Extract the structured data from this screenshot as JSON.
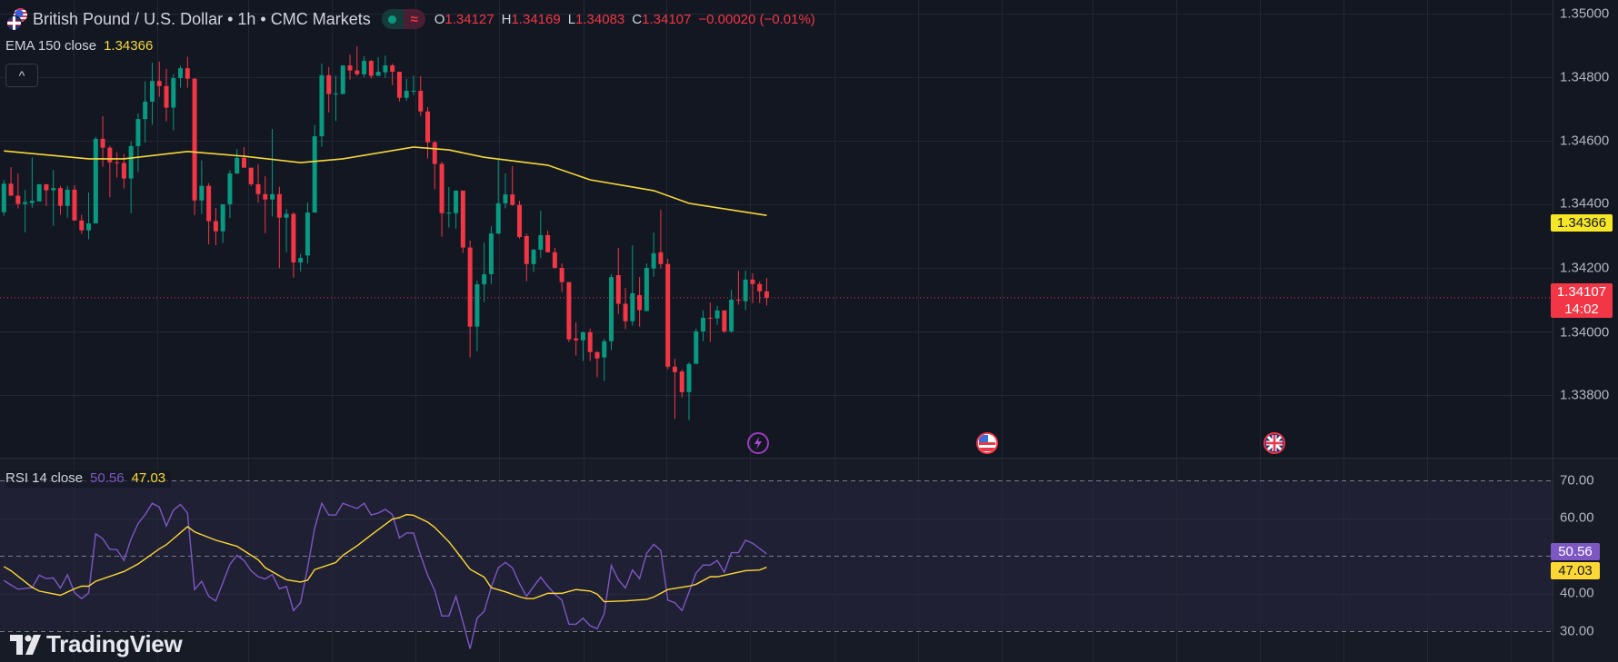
{
  "header": {
    "title": "British Pound / U.S. Dollar • 1h • CMC Markets",
    "ohlc": {
      "o_label": "O",
      "o_value": "1.34127",
      "h_label": "H",
      "h_value": "1.34169",
      "l_label": "L",
      "l_value": "1.34083",
      "c_label": "C",
      "c_value": "1.34107",
      "change": "−0.00020 (−0.01%)"
    },
    "pill_icon": "≈"
  },
  "ema_legend": {
    "name": "EMA 150 close",
    "value": "1.34366"
  },
  "rsi_legend": {
    "name": "RSI 14 close",
    "value": "50.56",
    "ma_value": "47.03"
  },
  "collapse_icon": "^",
  "price_axis": {
    "ticks": [
      "1.35000",
      "1.34800",
      "1.34600",
      "1.34400",
      "1.34200",
      "1.34000",
      "1.33800"
    ],
    "ema_tag": "1.34366",
    "last_price_tag": "1.34107",
    "countdown": "14:02"
  },
  "rsi_axis": {
    "ticks": [
      "70.00",
      "60.00",
      "40.00",
      "30.00"
    ],
    "rsi_tag": "50.56",
    "ma_tag": "47.03"
  },
  "markers": [
    {
      "icon": "lightning-icon"
    },
    {
      "icon": "us-flag-icon"
    },
    {
      "icon": "uk-flag-icon"
    }
  ],
  "logo_text": "TradingView",
  "colors": {
    "up": "#089981",
    "down": "#f23645",
    "ema": "#f5d83b",
    "rsi": "#7e57c2",
    "rsi_ma": "#fdd835",
    "background": "#131722",
    "grid": "#232733"
  },
  "chart_data": [
    {
      "type": "candlestick",
      "title": "British Pound / U.S. Dollar • 1h • CMC Markets",
      "ylim": [
        1.3365,
        1.3505
      ],
      "yticks": [
        1.35,
        1.348,
        1.346,
        1.344,
        1.342,
        1.34,
        1.338
      ],
      "grid": true,
      "ohlc_fields": [
        "open",
        "high",
        "low",
        "close"
      ],
      "candles": [
        [
          1.34376,
          1.34477,
          1.34365,
          1.34466
        ],
        [
          1.34466,
          1.34518,
          1.34428,
          1.34428
        ],
        [
          1.34428,
          1.34498,
          1.34388,
          1.34402
        ],
        [
          1.34402,
          1.34446,
          1.34313,
          1.34408
        ],
        [
          1.34405,
          1.34548,
          1.3439,
          1.34412
        ],
        [
          1.3441,
          1.34464,
          1.3441,
          1.34464
        ],
        [
          1.34464,
          1.34464,
          1.34396,
          1.34445
        ],
        [
          1.34445,
          1.34509,
          1.34333,
          1.34452
        ],
        [
          1.34452,
          1.34459,
          1.34368,
          1.34396
        ],
        [
          1.34396,
          1.34459,
          1.34359,
          1.34447
        ],
        [
          1.34447,
          1.34461,
          1.3435,
          1.3435
        ],
        [
          1.3435,
          1.34368,
          1.34308,
          1.34319
        ],
        [
          1.34319,
          1.34438,
          1.34291,
          1.34341
        ],
        [
          1.34341,
          1.34613,
          1.34341,
          1.34607
        ],
        [
          1.34607,
          1.34678,
          1.34519,
          1.34579
        ],
        [
          1.34579,
          1.34585,
          1.34423,
          1.34533
        ],
        [
          1.34533,
          1.34565,
          1.34485,
          1.34531
        ],
        [
          1.34531,
          1.34559,
          1.34451,
          1.34482
        ],
        [
          1.34482,
          1.34598,
          1.34373,
          1.34584
        ],
        [
          1.34584,
          1.34687,
          1.34503,
          1.34669
        ],
        [
          1.34669,
          1.34788,
          1.34595,
          1.34724
        ],
        [
          1.34724,
          1.34847,
          1.34651,
          1.34789
        ],
        [
          1.34789,
          1.3485,
          1.34739,
          1.34773
        ],
        [
          1.34773,
          1.34827,
          1.34662,
          1.34705
        ],
        [
          1.34705,
          1.3481,
          1.34634,
          1.34798
        ],
        [
          1.34798,
          1.34837,
          1.34768,
          1.34829
        ],
        [
          1.34829,
          1.34865,
          1.34768,
          1.34796
        ],
        [
          1.34796,
          1.34798,
          1.34367,
          1.34413
        ],
        [
          1.34413,
          1.34539,
          1.34371,
          1.34459
        ],
        [
          1.34459,
          1.34468,
          1.34275,
          1.34348
        ],
        [
          1.34348,
          1.34389,
          1.34272,
          1.34316
        ],
        [
          1.34316,
          1.34401,
          1.34279,
          1.34401
        ],
        [
          1.34401,
          1.34508,
          1.34358,
          1.34498
        ],
        [
          1.34498,
          1.34575,
          1.34496,
          1.34547
        ],
        [
          1.34547,
          1.34581,
          1.34516,
          1.34516
        ],
        [
          1.34516,
          1.34516,
          1.34458,
          1.34464
        ],
        [
          1.34464,
          1.34527,
          1.34406,
          1.34433
        ],
        [
          1.34433,
          1.34489,
          1.3431,
          1.34416
        ],
        [
          1.34416,
          1.34638,
          1.34362,
          1.34433
        ],
        [
          1.34433,
          1.34456,
          1.342,
          1.34359
        ],
        [
          1.34359,
          1.34386,
          1.3425,
          1.34371
        ],
        [
          1.34371,
          1.34376,
          1.3417,
          1.34218
        ],
        [
          1.34218,
          1.34245,
          1.3419,
          1.34232
        ],
        [
          1.3424,
          1.34407,
          1.34215,
          1.34375
        ],
        [
          1.34375,
          1.34651,
          1.34375,
          1.34615
        ],
        [
          1.34615,
          1.34844,
          1.34582,
          1.34807
        ],
        [
          1.34807,
          1.34833,
          1.3469,
          1.34748
        ],
        [
          1.34748,
          1.34806,
          1.34663,
          1.3475
        ],
        [
          1.34748,
          1.34838,
          1.34748,
          1.34838
        ],
        [
          1.34838,
          1.34872,
          1.34793,
          1.34822
        ],
        [
          1.34822,
          1.34898,
          1.34805,
          1.3481
        ],
        [
          1.3481,
          1.34867,
          1.34801,
          1.34852
        ],
        [
          1.34852,
          1.34855,
          1.34796,
          1.34805
        ],
        [
          1.34805,
          1.34864,
          1.34805,
          1.34818
        ],
        [
          1.34816,
          1.34869,
          1.34799,
          1.34838
        ],
        [
          1.34838,
          1.34844,
          1.34776,
          1.34818
        ],
        [
          1.34818,
          1.34818,
          1.34725,
          1.34736
        ],
        [
          1.34736,
          1.34795,
          1.34727,
          1.34758
        ],
        [
          1.34757,
          1.34806,
          1.34745,
          1.34758
        ],
        [
          1.34758,
          1.34804,
          1.34679,
          1.34693
        ],
        [
          1.34693,
          1.34707,
          1.34545,
          1.34596
        ],
        [
          1.34596,
          1.346,
          1.34448,
          1.34528
        ],
        [
          1.34528,
          1.34535,
          1.34299,
          1.34373
        ],
        [
          1.34373,
          1.34455,
          1.34328,
          1.34375
        ],
        [
          1.34373,
          1.34444,
          1.34325,
          1.34444
        ],
        [
          1.34444,
          1.34444,
          1.34248,
          1.34265
        ],
        [
          1.34265,
          1.34287,
          1.33919,
          1.34016
        ],
        [
          1.34016,
          1.34161,
          1.33939,
          1.34149
        ],
        [
          1.34149,
          1.34281,
          1.34093,
          1.34181
        ],
        [
          1.34181,
          1.34332,
          1.3415,
          1.34309
        ],
        [
          1.34309,
          1.34541,
          1.34307,
          1.34404
        ],
        [
          1.34404,
          1.34498,
          1.34388,
          1.34432
        ],
        [
          1.34432,
          1.34521,
          1.34396,
          1.34399
        ],
        [
          1.34399,
          1.34412,
          1.34293,
          1.34298
        ],
        [
          1.34301,
          1.34309,
          1.34159,
          1.34213
        ],
        [
          1.34213,
          1.34261,
          1.34188,
          1.34258
        ],
        [
          1.34258,
          1.34381,
          1.34233,
          1.34304
        ],
        [
          1.34304,
          1.34318,
          1.3425,
          1.3425
        ],
        [
          1.3425,
          1.34264,
          1.34198,
          1.34201
        ],
        [
          1.34201,
          1.34215,
          1.34125,
          1.34156
        ],
        [
          1.34156,
          1.34156,
          1.33968,
          1.33976
        ],
        [
          1.33979,
          1.3403,
          1.33925,
          1.33973
        ],
        [
          1.33973,
          1.34001,
          1.33908,
          1.33998
        ],
        [
          1.33998,
          1.3401,
          1.33908,
          1.33936
        ],
        [
          1.33936,
          1.33938,
          1.33856,
          1.33916
        ],
        [
          1.33919,
          1.33978,
          1.33845,
          1.3397
        ],
        [
          1.3397,
          1.34181,
          1.33942,
          1.34172
        ],
        [
          1.34178,
          1.34264,
          1.34056,
          1.34088
        ],
        [
          1.34088,
          1.34138,
          1.34008,
          1.34033
        ],
        [
          1.34033,
          1.34272,
          1.34019,
          1.34121
        ],
        [
          1.34115,
          1.34172,
          1.34016,
          1.34068
        ],
        [
          1.34065,
          1.34215,
          1.34065,
          1.34201
        ],
        [
          1.34199,
          1.34312,
          1.34173,
          1.34247
        ],
        [
          1.3425,
          1.34384,
          1.34199,
          1.34213
        ],
        [
          1.34213,
          1.3423,
          1.33882,
          1.3389
        ],
        [
          1.3389,
          1.33915,
          1.33726,
          1.33873
        ],
        [
          1.33875,
          1.33881,
          1.33793,
          1.3381
        ],
        [
          1.3381,
          1.33904,
          1.33722,
          1.33898
        ],
        [
          1.33899,
          1.3401,
          1.33899,
          1.34001
        ],
        [
          1.34001,
          1.34067,
          1.3397,
          1.34044
        ],
        [
          1.34044,
          1.34092,
          1.33968,
          1.34042
        ],
        [
          1.34042,
          1.34081,
          1.34022,
          1.34067
        ],
        [
          1.34067,
          1.34067,
          1.33996,
          1.34001
        ],
        [
          1.34001,
          1.34132,
          1.33996,
          1.34101
        ],
        [
          1.34101,
          1.34192,
          1.34085,
          1.34099
        ],
        [
          1.34096,
          1.34192,
          1.34068,
          1.34164
        ],
        [
          1.34164,
          1.34184,
          1.3409,
          1.3415
        ],
        [
          1.3415,
          1.34158,
          1.3409,
          1.34127
        ],
        [
          1.34127,
          1.34169,
          1.34083,
          1.34107
        ]
      ],
      "last_price": 1.34107,
      "ema_150": {
        "name": "EMA 150 close",
        "points": [
          [
            0,
            1.34569
          ],
          [
            12,
            1.34544
          ],
          [
            17,
            1.34544
          ],
          [
            26,
            1.34567
          ],
          [
            34,
            1.34552
          ],
          [
            42,
            1.34532
          ],
          [
            48,
            1.34544
          ],
          [
            58,
            1.34581
          ],
          [
            63,
            1.34572
          ],
          [
            68,
            1.34549
          ],
          [
            77,
            1.34524
          ],
          [
            83,
            1.34478
          ],
          [
            92,
            1.34444
          ],
          [
            97,
            1.34404
          ],
          [
            108,
            1.34366
          ]
        ]
      }
    },
    {
      "type": "line",
      "title": "RSI 14 close",
      "ylim": [
        25,
        75
      ],
      "yticks": [
        70,
        60,
        40,
        30
      ],
      "bands": {
        "upper": 70,
        "middle": 50,
        "lower": 30
      },
      "series": [
        {
          "name": "RSI",
          "values": [
            43.5,
            42.3,
            41.2,
            41.4,
            41.6,
            44.9,
            44.0,
            44.2,
            41.5,
            45.0,
            40.3,
            38.7,
            40.2,
            55.9,
            54.6,
            51.8,
            51.7,
            48.8,
            54.5,
            58.6,
            61.0,
            64.0,
            63.0,
            58.0,
            62.2,
            63.7,
            61.4,
            41.1,
            43.3,
            39.3,
            38.1,
            42.9,
            47.8,
            50.2,
            48.8,
            46.1,
            44.5,
            43.9,
            45.1,
            41.3,
            41.9,
            35.5,
            37.6,
            46.9,
            57.4,
            64.0,
            60.9,
            60.9,
            64.0,
            63.3,
            62.6,
            64.0,
            60.9,
            61.4,
            62.4,
            61.0,
            54.8,
            56.1,
            56.1,
            50.2,
            44.9,
            40.9,
            34.1,
            34.1,
            39.3,
            32.5,
            25.4,
            33.5,
            35.3,
            41.7,
            46.9,
            48.3,
            46.9,
            42.7,
            39.3,
            41.9,
            44.4,
            42.0,
            39.9,
            38.3,
            31.9,
            31.9,
            33.5,
            31.5,
            30.7,
            34.7,
            47.5,
            43.7,
            41.5,
            46.3,
            44.0,
            50.7,
            53.1,
            51.5,
            38.3,
            37.6,
            35.5,
            40.4,
            45.5,
            47.6,
            47.6,
            48.8,
            45.7,
            50.9,
            50.9,
            54.2,
            53.4,
            52.0,
            50.56
          ]
        },
        {
          "name": "RSI MA",
          "points": [
            [
              0,
              47.2
            ],
            [
              1,
              46.1
            ],
            [
              4,
              41.7
            ],
            [
              5,
              40.7
            ],
            [
              8,
              39.6
            ],
            [
              10,
              41.3
            ],
            [
              11,
              42.0
            ],
            [
              12,
              42.0
            ],
            [
              13,
              43.3
            ],
            [
              17,
              45.9
            ],
            [
              19,
              47.9
            ],
            [
              22,
              51.9
            ],
            [
              23,
              53.0
            ],
            [
              26,
              57.8
            ],
            [
              27,
              56.4
            ],
            [
              30,
              54.2
            ],
            [
              33,
              52.6
            ],
            [
              34,
              51.4
            ],
            [
              36,
              49.0
            ],
            [
              37,
              46.9
            ],
            [
              40,
              43.7
            ],
            [
              42,
              43.1
            ],
            [
              43,
              43.6
            ],
            [
              44,
              46.4
            ],
            [
              47,
              48.3
            ],
            [
              48,
              50.2
            ],
            [
              50,
              52.7
            ],
            [
              52,
              55.6
            ],
            [
              55,
              59.8
            ],
            [
              56,
              60.2
            ],
            [
              57,
              61.0
            ],
            [
              58,
              60.8
            ],
            [
              60,
              59.0
            ],
            [
              61,
              57.6
            ],
            [
              63,
              53.8
            ],
            [
              64,
              51.4
            ],
            [
              66,
              46.5
            ],
            [
              68,
              44.4
            ],
            [
              69,
              41.6
            ],
            [
              71,
              40.5
            ],
            [
              73,
              39.2
            ],
            [
              74,
              38.7
            ],
            [
              75,
              38.7
            ],
            [
              77,
              40.1
            ],
            [
              79,
              40.1
            ],
            [
              81,
              41.1
            ],
            [
              83,
              40.7
            ],
            [
              84,
              39.9
            ],
            [
              85,
              37.9
            ],
            [
              88,
              38.1
            ],
            [
              91,
              38.5
            ],
            [
              92,
              39.1
            ],
            [
              94,
              41.1
            ],
            [
              97,
              42.0
            ],
            [
              98,
              42.5
            ],
            [
              100,
              44.5
            ],
            [
              101,
              44.5
            ],
            [
              103,
              45.3
            ],
            [
              105,
              46.1
            ],
            [
              107,
              46.3
            ],
            [
              108,
              47.03
            ]
          ]
        }
      ]
    }
  ]
}
